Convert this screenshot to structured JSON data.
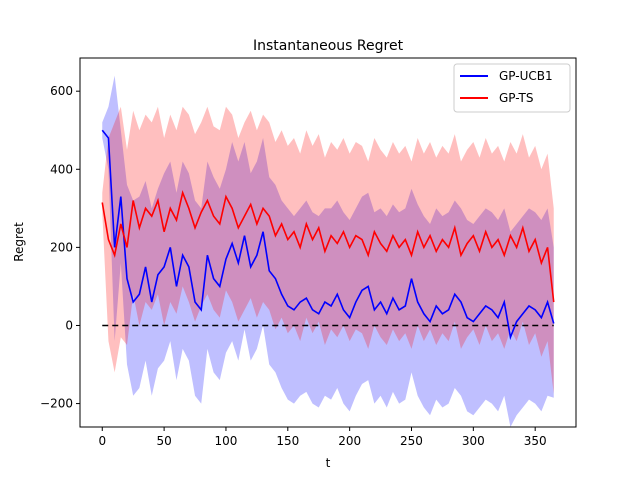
{
  "chart_data": {
    "type": "line",
    "title": "Instantaneous Regret",
    "xlabel": "t",
    "ylabel": "Regret",
    "xlim": [
      -18,
      383
    ],
    "ylim": [
      -260,
      685
    ],
    "xticks": [
      0,
      50,
      100,
      150,
      200,
      250,
      300,
      350
    ],
    "yticks": [
      -200,
      0,
      200,
      400,
      600
    ],
    "grid": false,
    "legend_position": "top-right",
    "reference_line": {
      "y": 0,
      "x_range": [
        0,
        365
      ],
      "style": "dashed",
      "color": "#000000"
    },
    "series": [
      {
        "name": "GP-UCB1",
        "color": "#0000ff",
        "band_color": "#0000ff",
        "x": [
          0,
          5,
          10,
          15,
          20,
          25,
          30,
          35,
          40,
          45,
          50,
          55,
          60,
          65,
          70,
          75,
          80,
          85,
          90,
          95,
          100,
          105,
          110,
          115,
          120,
          125,
          130,
          135,
          140,
          145,
          150,
          155,
          160,
          165,
          170,
          175,
          180,
          185,
          190,
          195,
          200,
          205,
          210,
          215,
          220,
          225,
          230,
          235,
          240,
          245,
          250,
          255,
          260,
          265,
          270,
          275,
          280,
          285,
          290,
          295,
          300,
          305,
          310,
          315,
          320,
          325,
          330,
          335,
          340,
          345,
          350,
          355,
          360,
          365
        ],
        "mean": [
          500,
          480,
          200,
          330,
          120,
          60,
          80,
          150,
          60,
          130,
          150,
          200,
          100,
          180,
          150,
          60,
          40,
          180,
          120,
          100,
          170,
          210,
          160,
          230,
          150,
          180,
          240,
          140,
          120,
          80,
          50,
          40,
          60,
          70,
          40,
          30,
          60,
          50,
          80,
          40,
          20,
          60,
          90,
          100,
          40,
          60,
          30,
          70,
          40,
          50,
          120,
          60,
          30,
          10,
          50,
          30,
          40,
          80,
          60,
          20,
          10,
          30,
          50,
          40,
          20,
          60,
          -30,
          10,
          30,
          50,
          40,
          20,
          60,
          5
        ],
        "upper": [
          520,
          560,
          640,
          500,
          360,
          320,
          330,
          370,
          300,
          350,
          390,
          420,
          340,
          420,
          390,
          320,
          300,
          420,
          380,
          350,
          400,
          470,
          420,
          470,
          390,
          420,
          480,
          380,
          360,
          320,
          300,
          280,
          300,
          320,
          290,
          280,
          300,
          300,
          320,
          290,
          270,
          300,
          330,
          340,
          290,
          300,
          280,
          310,
          290,
          300,
          350,
          310,
          280,
          260,
          300,
          280,
          290,
          320,
          300,
          270,
          260,
          280,
          300,
          290,
          270,
          300,
          240,
          260,
          280,
          300,
          290,
          270,
          300,
          200
        ],
        "lower": [
          480,
          400,
          -40,
          160,
          -100,
          -180,
          -160,
          -90,
          -180,
          -110,
          -90,
          -40,
          -140,
          -60,
          -90,
          -180,
          -200,
          -60,
          -120,
          -140,
          -70,
          -40,
          -90,
          -10,
          -90,
          -60,
          0,
          -100,
          -120,
          -160,
          -190,
          -200,
          -180,
          -170,
          -200,
          -210,
          -180,
          -190,
          -160,
          -200,
          -220,
          -180,
          -150,
          -140,
          -200,
          -180,
          -210,
          -170,
          -200,
          -190,
          -120,
          -180,
          -210,
          -230,
          -190,
          -210,
          -200,
          -160,
          -180,
          -220,
          -230,
          -210,
          -190,
          -200,
          -220,
          -180,
          -260,
          -230,
          -210,
          -190,
          -200,
          -220,
          -180,
          -185
        ]
      },
      {
        "name": "GP-TS",
        "color": "#ff0000",
        "band_color": "#ff0000",
        "x": [
          0,
          5,
          10,
          15,
          20,
          25,
          30,
          35,
          40,
          45,
          50,
          55,
          60,
          65,
          70,
          75,
          80,
          85,
          90,
          95,
          100,
          105,
          110,
          115,
          120,
          125,
          130,
          135,
          140,
          145,
          150,
          155,
          160,
          165,
          170,
          175,
          180,
          185,
          190,
          195,
          200,
          205,
          210,
          215,
          220,
          225,
          230,
          235,
          240,
          245,
          250,
          255,
          260,
          265,
          270,
          275,
          280,
          285,
          290,
          295,
          300,
          305,
          310,
          315,
          320,
          325,
          330,
          335,
          340,
          345,
          350,
          355,
          360,
          365
        ],
        "mean": [
          315,
          220,
          180,
          260,
          200,
          320,
          250,
          300,
          280,
          320,
          240,
          300,
          270,
          340,
          300,
          250,
          290,
          320,
          280,
          260,
          330,
          300,
          250,
          280,
          310,
          260,
          300,
          280,
          230,
          260,
          220,
          240,
          200,
          260,
          220,
          250,
          190,
          230,
          210,
          240,
          200,
          230,
          220,
          180,
          240,
          210,
          190,
          230,
          200,
          220,
          180,
          240,
          200,
          230,
          190,
          220,
          200,
          250,
          180,
          210,
          230,
          190,
          240,
          200,
          220,
          180,
          230,
          200,
          250,
          190,
          220,
          160,
          200,
          60
        ],
        "upper": [
          340,
          480,
          520,
          560,
          450,
          550,
          500,
          540,
          520,
          560,
          480,
          540,
          500,
          560,
          540,
          490,
          520,
          560,
          510,
          500,
          560,
          540,
          480,
          520,
          550,
          500,
          540,
          520,
          470,
          500,
          460,
          480,
          440,
          500,
          460,
          490,
          430,
          470,
          450,
          480,
          440,
          470,
          460,
          420,
          480,
          450,
          430,
          470,
          440,
          460,
          420,
          480,
          440,
          470,
          430,
          460,
          440,
          490,
          420,
          450,
          470,
          430,
          480,
          440,
          460,
          420,
          470,
          440,
          490,
          430,
          460,
          400,
          440,
          300
        ],
        "lower": [
          290,
          -40,
          -120,
          -30,
          -50,
          80,
          0,
          60,
          40,
          80,
          0,
          60,
          30,
          100,
          60,
          10,
          50,
          80,
          40,
          20,
          90,
          60,
          10,
          40,
          70,
          20,
          60,
          40,
          -10,
          20,
          -20,
          0,
          -40,
          20,
          -20,
          10,
          -50,
          -10,
          -30,
          0,
          -40,
          -10,
          -20,
          -60,
          0,
          -30,
          -50,
          -10,
          -40,
          -20,
          -60,
          0,
          -40,
          -10,
          -50,
          -20,
          -40,
          10,
          -60,
          -30,
          -10,
          -50,
          0,
          -40,
          -20,
          -60,
          -10,
          -40,
          10,
          -50,
          -20,
          -80,
          -40,
          -175
        ]
      }
    ]
  }
}
